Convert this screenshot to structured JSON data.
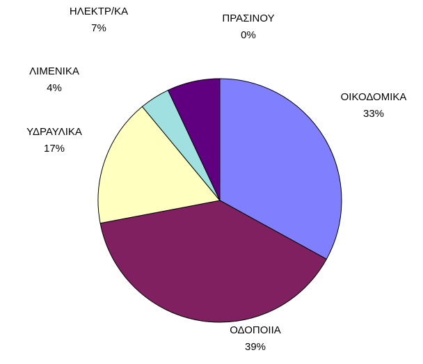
{
  "chart_data": {
    "type": "pie",
    "categories": [
      "ΟΙΚΟΔΟΜΙΚΑ",
      "ΟΔΟΠΟΙΙΑ",
      "ΥΔΡΑΥΛΙΚΑ",
      "ΛΙΜΕΝΙΚΑ",
      "ΗΛΕΚΤΡ/ΚΑ",
      "ΠΡΑΣΙΝΟΥ"
    ],
    "values": [
      33,
      39,
      17,
      4,
      7,
      0
    ],
    "value_labels": [
      "33%",
      "39%",
      "17%",
      "4%",
      "7%",
      "0%"
    ],
    "colors": [
      "#8080ff",
      "#802060",
      "#ffffc0",
      "#a0e0e0",
      "#600080",
      "#ff8080"
    ]
  }
}
